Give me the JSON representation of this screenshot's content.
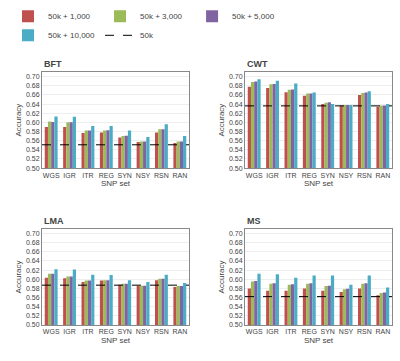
{
  "chart_data": [
    {
      "type": "bar",
      "title": "BFT",
      "xlabel": "SNP set",
      "ylabel": "Accuracy",
      "categories": [
        "WGS",
        "IGR",
        "ITR",
        "REG",
        "SYN",
        "NSY",
        "RSN",
        "RAN"
      ],
      "series": [
        {
          "name": "50k + 1,000",
          "color": "#c0504d",
          "values": [
            0.59,
            0.59,
            0.577,
            0.578,
            0.567,
            0.557,
            0.578,
            0.555
          ]
        },
        {
          "name": "50k + 3,000",
          "color": "#9bbb59",
          "values": [
            0.602,
            0.6,
            0.582,
            0.582,
            0.57,
            0.558,
            0.585,
            0.558
          ]
        },
        {
          "name": "50k + 5,000",
          "color": "#8064a2",
          "values": [
            0.601,
            0.6,
            0.582,
            0.583,
            0.571,
            0.558,
            0.585,
            0.558
          ]
        },
        {
          "name": "50k + 10,000",
          "color": "#4bacc6",
          "values": [
            0.613,
            0.612,
            0.592,
            0.592,
            0.582,
            0.568,
            0.596,
            0.57
          ]
        }
      ],
      "hline": {
        "name": "50k",
        "value": 0.551,
        "color": "#000000",
        "line_style": "dashed"
      },
      "ylim": [
        0.5,
        0.71
      ],
      "yticks": [
        {
          "value": 0.5,
          "label": "0.50"
        },
        0.52,
        0.54,
        0.56,
        0.58,
        {
          "value": 0.6,
          "label": "0.60"
        },
        0.62,
        0.64,
        0.66,
        0.68,
        {
          "value": 0.7,
          "label": "0.70"
        }
      ],
      "grid": true,
      "legend": "top"
    },
    {
      "type": "bar",
      "title": "CWT",
      "xlabel": "SNP set",
      "ylabel": "Accuracy",
      "categories": [
        "WGS",
        "IGR",
        "ITR",
        "REG",
        "SYN",
        "NSY",
        "RSN",
        "RAN"
      ],
      "series": [
        {
          "name": "50k + 1,000",
          "color": "#c0504d",
          "values": [
            0.678,
            0.675,
            0.666,
            0.658,
            0.64,
            0.637,
            0.66,
            0.634
          ]
        },
        {
          "name": "50k + 3,000",
          "color": "#9bbb59",
          "values": [
            0.688,
            0.683,
            0.671,
            0.663,
            0.643,
            0.638,
            0.664,
            0.637
          ]
        },
        {
          "name": "50k + 5,000",
          "color": "#8064a2",
          "values": [
            0.689,
            0.684,
            0.672,
            0.663,
            0.644,
            0.638,
            0.665,
            0.637
          ]
        },
        {
          "name": "50k + 10,000",
          "color": "#4bacc6",
          "values": [
            0.694,
            0.691,
            0.685,
            0.665,
            0.64,
            0.638,
            0.668,
            0.64
          ]
        }
      ],
      "hline": {
        "name": "50k",
        "value": 0.636,
        "color": "#000000",
        "line_style": "dashed"
      },
      "ylim": [
        0.5,
        0.71
      ],
      "yticks": [
        {
          "value": 0.5,
          "label": "0.50"
        },
        0.52,
        0.54,
        0.56,
        0.58,
        {
          "value": 0.6,
          "label": "0.60"
        },
        0.62,
        0.64,
        0.66,
        0.68,
        {
          "value": 0.7,
          "label": "0.70"
        }
      ],
      "grid": true,
      "legend": "top"
    },
    {
      "type": "bar",
      "title": "LMA",
      "xlabel": "SNP set",
      "ylabel": "Accuracy",
      "categories": [
        "WGS",
        "IGR",
        "ITR",
        "REG",
        "SYN",
        "NSY",
        "RSN",
        "RAN"
      ],
      "series": [
        {
          "name": "50k + 1,000",
          "color": "#c0504d",
          "values": [
            0.603,
            0.602,
            0.594,
            0.597,
            0.588,
            0.586,
            0.598,
            0.583
          ]
        },
        {
          "name": "50k + 3,000",
          "color": "#9bbb59",
          "values": [
            0.612,
            0.606,
            0.597,
            0.598,
            0.59,
            0.586,
            0.601,
            0.585
          ]
        },
        {
          "name": "50k + 5,000",
          "color": "#8064a2",
          "values": [
            0.612,
            0.606,
            0.597,
            0.598,
            0.59,
            0.586,
            0.601,
            0.585
          ]
        },
        {
          "name": "50k + 10,000",
          "color": "#4bacc6",
          "values": [
            0.622,
            0.621,
            0.61,
            0.609,
            0.598,
            0.594,
            0.61,
            0.592
          ]
        }
      ],
      "hline": {
        "name": "50k",
        "value": 0.587,
        "color": "#000000",
        "line_style": "dashed"
      },
      "ylim": [
        0.5,
        0.71
      ],
      "yticks": [
        {
          "value": 0.5,
          "label": "0.50"
        },
        0.52,
        0.54,
        0.56,
        0.58,
        {
          "value": 0.6,
          "label": "0.60"
        },
        0.62,
        0.64,
        0.66,
        0.68,
        {
          "value": 0.7,
          "label": "0.70"
        }
      ],
      "grid": true,
      "legend": "top"
    },
    {
      "type": "bar",
      "title": "MS",
      "xlabel": "SNP set",
      "ylabel": "Accuracy",
      "categories": [
        "WGS",
        "IGR",
        "ITR",
        "REG",
        "SYN",
        "NSY",
        "RSN",
        "RAN"
      ],
      "series": [
        {
          "name": "50k + 1,000",
          "color": "#c0504d",
          "values": [
            0.58,
            0.575,
            0.575,
            0.58,
            0.575,
            0.572,
            0.58,
            0.565
          ]
        },
        {
          "name": "50k + 3,000",
          "color": "#9bbb59",
          "values": [
            0.595,
            0.59,
            0.588,
            0.59,
            0.585,
            0.578,
            0.59,
            0.57
          ]
        },
        {
          "name": "50k + 5,000",
          "color": "#8064a2",
          "values": [
            0.596,
            0.591,
            0.589,
            0.591,
            0.586,
            0.579,
            0.591,
            0.571
          ]
        },
        {
          "name": "50k + 10,000",
          "color": "#4bacc6",
          "values": [
            0.612,
            0.611,
            0.603,
            0.608,
            0.608,
            0.588,
            0.608,
            0.582
          ]
        }
      ],
      "hline": {
        "name": "50k",
        "value": 0.562,
        "color": "#000000",
        "line_style": "dashed"
      },
      "ylim": [
        0.5,
        0.71
      ],
      "yticks": [
        {
          "value": 0.5,
          "label": "0.50"
        },
        0.52,
        0.54,
        0.56,
        0.58,
        {
          "value": 0.6,
          "label": "0.60"
        },
        0.62,
        0.64,
        0.66,
        0.68,
        {
          "value": 0.7,
          "label": "0.70"
        }
      ],
      "grid": true,
      "legend": "top"
    }
  ]
}
